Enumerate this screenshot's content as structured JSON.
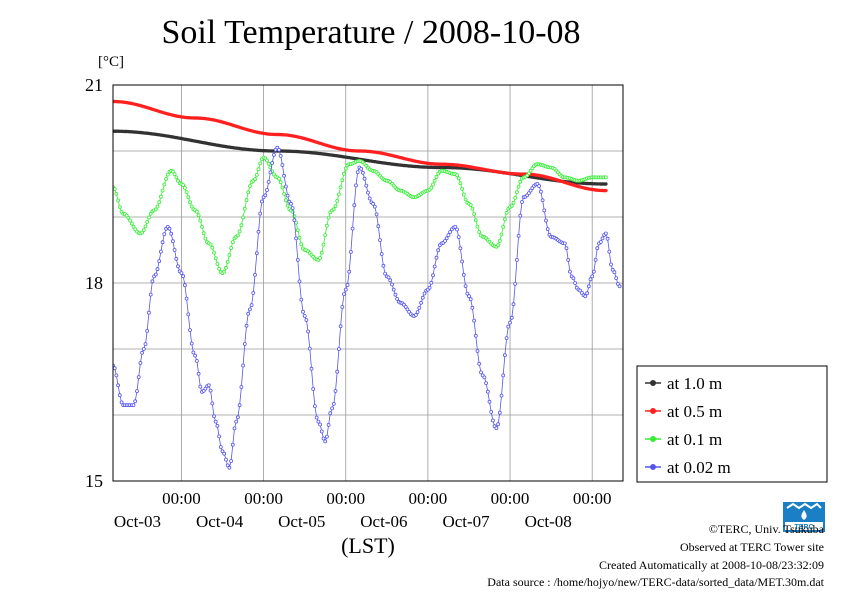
{
  "chart_data": {
    "type": "line",
    "title": "Soil Temperature / 2008-10-08",
    "ylabel": "[°C]",
    "xlabel": "(LST)",
    "ylim": [
      15,
      21
    ],
    "yticks": [
      15,
      18,
      21
    ],
    "xlim": [
      0,
      144
    ],
    "xticks": [
      {
        "x": 20,
        "time": "00:00",
        "date": "Oct-03"
      },
      {
        "x": 44,
        "time": "00:00",
        "date": "Oct-04"
      },
      {
        "x": 68,
        "time": "00:00",
        "date": "Oct-05"
      },
      {
        "x": 92,
        "time": "00:00",
        "date": "Oct-06"
      },
      {
        "x": 116,
        "time": "00:00",
        "date": "Oct-07"
      },
      {
        "x": 140,
        "time": "00:00",
        "date": "Oct-08"
      }
    ],
    "grid": true,
    "legend_position": "right",
    "series": [
      {
        "name": "at 1.0 m",
        "color": "#333333",
        "marker": "circle",
        "points": [
          [
            0,
            20.3
          ],
          [
            48,
            20.0
          ],
          [
            96,
            19.75
          ],
          [
            144,
            19.5
          ]
        ]
      },
      {
        "name": "at 0.5 m",
        "color": "#ff2020",
        "marker": "circle",
        "points": [
          [
            0,
            20.75
          ],
          [
            24,
            20.5
          ],
          [
            48,
            20.25
          ],
          [
            72,
            20.0
          ],
          [
            96,
            19.8
          ],
          [
            120,
            19.65
          ],
          [
            144,
            19.4
          ]
        ]
      },
      {
        "name": "at 0.1 m",
        "color": "#33ee33",
        "marker": "circle",
        "points": [
          [
            0,
            19.45
          ],
          [
            3,
            19.05
          ],
          [
            8,
            18.75
          ],
          [
            12,
            19.1
          ],
          [
            17,
            19.7
          ],
          [
            20,
            19.5
          ],
          [
            24,
            19.1
          ],
          [
            28,
            18.6
          ],
          [
            32,
            18.15
          ],
          [
            36,
            18.7
          ],
          [
            41,
            19.55
          ],
          [
            44,
            19.9
          ],
          [
            48,
            19.6
          ],
          [
            52,
            19.1
          ],
          [
            56,
            18.5
          ],
          [
            60,
            18.35
          ],
          [
            64,
            19.1
          ],
          [
            69,
            19.8
          ],
          [
            72,
            19.85
          ],
          [
            76,
            19.7
          ],
          [
            80,
            19.55
          ],
          [
            84,
            19.4
          ],
          [
            88,
            19.3
          ],
          [
            92,
            19.4
          ],
          [
            96,
            19.7
          ],
          [
            100,
            19.65
          ],
          [
            104,
            19.2
          ],
          [
            108,
            18.7
          ],
          [
            112,
            18.55
          ],
          [
            116,
            19.15
          ],
          [
            120,
            19.6
          ],
          [
            124,
            19.8
          ],
          [
            128,
            19.75
          ],
          [
            132,
            19.6
          ],
          [
            136,
            19.55
          ],
          [
            140,
            19.6
          ],
          [
            144,
            19.6
          ]
        ]
      },
      {
        "name": "at 0.02 m",
        "color": "#5555ee",
        "marker": "circle",
        "points": [
          [
            0,
            16.75
          ],
          [
            3,
            16.15
          ],
          [
            6,
            16.15
          ],
          [
            9,
            17.0
          ],
          [
            12,
            18.1
          ],
          [
            16,
            18.85
          ],
          [
            20,
            18.15
          ],
          [
            24,
            16.9
          ],
          [
            26,
            16.35
          ],
          [
            28,
            16.45
          ],
          [
            30,
            15.9
          ],
          [
            32,
            15.45
          ],
          [
            34,
            15.2
          ],
          [
            36,
            15.9
          ],
          [
            40,
            17.6
          ],
          [
            44,
            19.3
          ],
          [
            48,
            20.05
          ],
          [
            52,
            19.2
          ],
          [
            56,
            17.5
          ],
          [
            60,
            15.9
          ],
          [
            62,
            15.6
          ],
          [
            64,
            16.1
          ],
          [
            68,
            17.9
          ],
          [
            72,
            19.75
          ],
          [
            76,
            19.2
          ],
          [
            80,
            18.1
          ],
          [
            84,
            17.7
          ],
          [
            88,
            17.5
          ],
          [
            92,
            17.9
          ],
          [
            96,
            18.6
          ],
          [
            100,
            18.85
          ],
          [
            104,
            17.8
          ],
          [
            108,
            16.6
          ],
          [
            112,
            15.8
          ],
          [
            116,
            17.4
          ],
          [
            120,
            19.3
          ],
          [
            124,
            19.5
          ],
          [
            128,
            18.7
          ],
          [
            132,
            18.6
          ],
          [
            134,
            18.1
          ],
          [
            136,
            17.9
          ],
          [
            138,
            17.8
          ],
          [
            140,
            18.1
          ],
          [
            142,
            18.6
          ],
          [
            144,
            18.75
          ],
          [
            146,
            18.2
          ],
          [
            148,
            17.95
          ]
        ]
      }
    ]
  },
  "footer": {
    "copyright": "©TERC, Univ. Tsukuba",
    "observed": "Observed at TERC Tower site",
    "created": "Created Automatically at 2008-10-08/23:32:09",
    "source": "Data source : /home/hojyo/new/TERC-data/sorted_data/MET.30m.dat"
  },
  "logo": {
    "text": "TERC",
    "color": "#1a7fc4"
  }
}
